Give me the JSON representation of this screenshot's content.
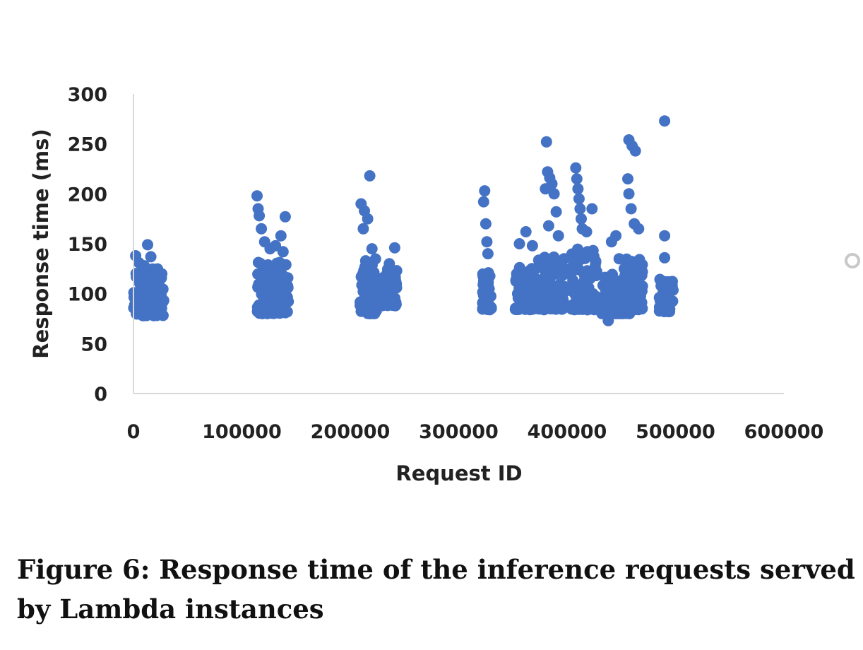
{
  "caption": "Figure 6: Response time of the inference requests served by Lambda instances",
  "chart_data": {
    "type": "scatter",
    "xlabel": "Request ID",
    "ylabel": "Response time (ms)",
    "xlim": [
      0,
      600000
    ],
    "ylim": [
      0,
      300
    ],
    "x_ticks": [
      "0",
      "100000",
      "200000",
      "300000",
      "400000",
      "500000",
      "600000"
    ],
    "y_ticks": [
      "0",
      "50",
      "100",
      "150",
      "200",
      "250",
      "300"
    ],
    "grid": false,
    "marker_color": "#4472C4",
    "axis_color": "#d9d9d9",
    "clusters": [
      {
        "x_range": [
          0,
          28000
        ],
        "y_range": [
          78,
          125
        ],
        "outliers": [
          [
            2000,
            138
          ],
          [
            5000,
            131
          ],
          [
            10000,
            128
          ],
          [
            13000,
            149
          ],
          [
            16000,
            137
          ],
          [
            20000,
            122
          ],
          [
            25000,
            118
          ]
        ]
      },
      {
        "x_range": [
          114000,
          143000
        ],
        "y_range": [
          80,
          132
        ],
        "outliers": [
          [
            114000,
            198
          ],
          [
            115000,
            185
          ],
          [
            116000,
            178
          ],
          [
            118000,
            165
          ],
          [
            121000,
            152
          ],
          [
            126000,
            145
          ],
          [
            131000,
            148
          ],
          [
            136000,
            158
          ],
          [
            140000,
            177
          ],
          [
            138000,
            142
          ]
        ]
      },
      {
        "x_range": [
          209000,
          225000
        ],
        "y_range": [
          80,
          135
        ],
        "outliers": [
          [
            210000,
            190
          ],
          [
            213000,
            183
          ],
          [
            216000,
            175
          ],
          [
            218000,
            218
          ],
          [
            212000,
            165
          ],
          [
            220000,
            145
          ]
        ]
      },
      {
        "x_range": [
          226000,
          243000
        ],
        "y_range": [
          88,
          125
        ],
        "outliers": [
          [
            236000,
            130
          ],
          [
            241000,
            146
          ]
        ]
      },
      {
        "x_range": [
          322000,
          331000
        ],
        "y_range": [
          84,
          125
        ],
        "outliers": [
          [
            324000,
            203
          ],
          [
            323000,
            192
          ],
          [
            325000,
            170
          ],
          [
            326000,
            152
          ],
          [
            327000,
            140
          ]
        ]
      },
      {
        "x_range": [
          352000,
          372000
        ],
        "y_range": [
          84,
          128
        ],
        "outliers": [
          [
            356000,
            150
          ],
          [
            362000,
            162
          ],
          [
            368000,
            148
          ]
        ]
      },
      {
        "x_range": [
          373000,
          398000
        ],
        "y_range": [
          84,
          140
        ],
        "outliers": [
          [
            381000,
            252
          ],
          [
            382000,
            222
          ],
          [
            384000,
            216
          ],
          [
            380000,
            205
          ],
          [
            386000,
            210
          ],
          [
            388000,
            200
          ],
          [
            390000,
            182
          ],
          [
            383000,
            168
          ],
          [
            392000,
            158
          ]
        ]
      },
      {
        "x_range": [
          403000,
          428000
        ],
        "y_range": [
          84,
          145
        ],
        "outliers": [
          [
            408000,
            226
          ],
          [
            409000,
            215
          ],
          [
            410000,
            205
          ],
          [
            411000,
            195
          ],
          [
            412000,
            185
          ],
          [
            413000,
            175
          ],
          [
            414000,
            165
          ],
          [
            423000,
            185
          ],
          [
            418000,
            162
          ]
        ]
      },
      {
        "x_range": [
          432000,
          458000
        ],
        "y_range": [
          80,
          125
        ],
        "outliers": [
          [
            438000,
            73
          ],
          [
            441000,
            152
          ],
          [
            445000,
            158
          ],
          [
            448000,
            135
          ]
        ]
      },
      {
        "x_range": [
          452000,
          470000
        ],
        "y_range": [
          84,
          135
        ],
        "outliers": [
          [
            457000,
            254
          ],
          [
            460000,
            248
          ],
          [
            463000,
            243
          ],
          [
            456000,
            215
          ],
          [
            457000,
            200
          ],
          [
            459000,
            185
          ],
          [
            462000,
            170
          ],
          [
            466000,
            165
          ]
        ]
      },
      {
        "x_range": [
          485000,
          498000
        ],
        "y_range": [
          82,
          115
        ],
        "outliers": [
          [
            490000,
            273
          ],
          [
            490000,
            158
          ],
          [
            490000,
            136
          ]
        ]
      }
    ]
  }
}
